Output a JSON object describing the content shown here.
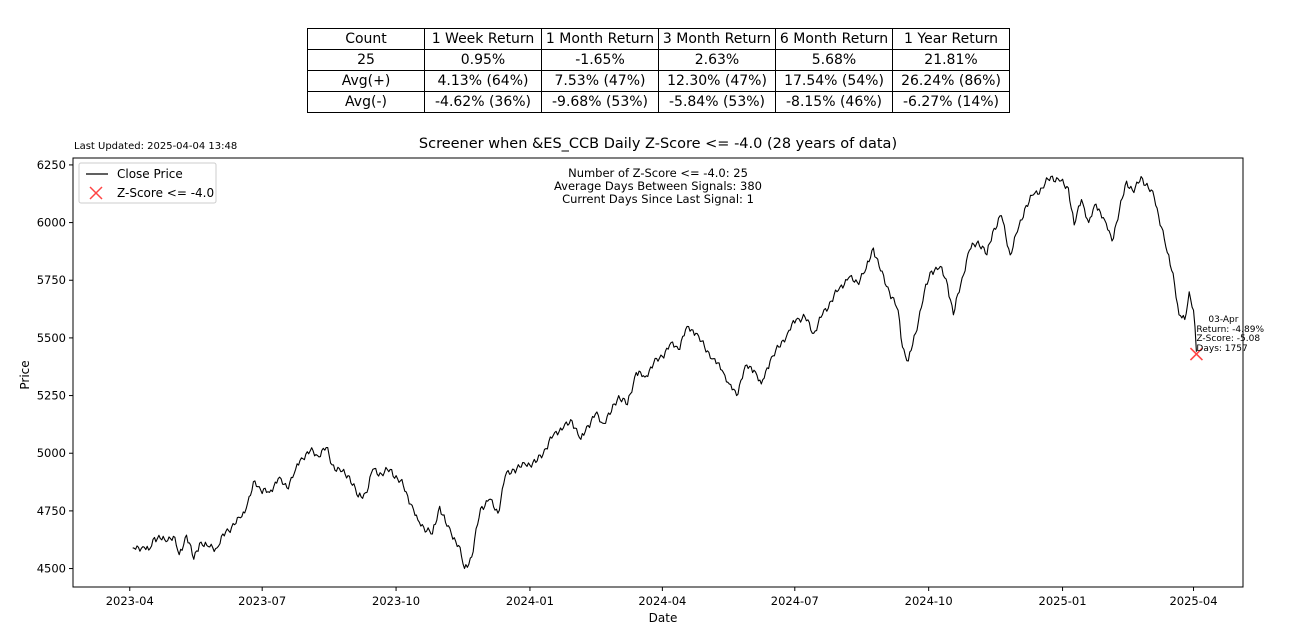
{
  "stats_table": {
    "header": [
      "Count",
      "1 Week Return",
      "1 Month Return",
      "3 Month Return",
      "6 Month Return",
      "1 Year Return"
    ],
    "rows": [
      [
        "25",
        "0.95%",
        "-1.65%",
        "2.63%",
        "5.68%",
        "21.81%"
      ],
      [
        "Avg(+)",
        "4.13% (64%)",
        "7.53% (47%)",
        "12.30% (47%)",
        "17.54% (54%)",
        "26.24% (86%)"
      ],
      [
        "Avg(-)",
        "-4.62% (36%)",
        "-9.68% (53%)",
        "-5.84% (53%)",
        "-8.15% (46%)",
        "-6.27% (14%)"
      ]
    ]
  },
  "last_updated": "Last Updated: 2025-04-04 13:48",
  "chart_data": {
    "type": "line",
    "title": "Screener when &ES_CCB Daily Z-Score <= -4.0 (28 years of data)",
    "xlabel": "Date",
    "ylabel": "Price",
    "xlim": [
      "2023-02-21",
      "2025-05-05"
    ],
    "ylim": [
      4420,
      6280
    ],
    "x_ticks": [
      {
        "date": "2023-04-01",
        "label": "2023-04"
      },
      {
        "date": "2023-07-01",
        "label": "2023-07"
      },
      {
        "date": "2023-10-01",
        "label": "2023-10"
      },
      {
        "date": "2024-01-01",
        "label": "2024-01"
      },
      {
        "date": "2024-04-01",
        "label": "2024-04"
      },
      {
        "date": "2024-07-01",
        "label": "2024-07"
      },
      {
        "date": "2024-10-01",
        "label": "2024-10"
      },
      {
        "date": "2025-01-01",
        "label": "2025-01"
      },
      {
        "date": "2025-04-01",
        "label": "2025-04"
      }
    ],
    "y_ticks": [
      4500,
      4750,
      5000,
      5250,
      5500,
      5750,
      6000,
      6250
    ],
    "legend_position": "top-left",
    "info_lines": [
      "Number of Z-Score <= -4.0: 25",
      "Average Days Between Signals: 380",
      "Current Days Since Last Signal: 1"
    ],
    "series": [
      {
        "name": "Close Price",
        "color": "#000000",
        "points": [
          [
            "2023-04-03",
            4590
          ],
          [
            "2023-04-10",
            4595
          ],
          [
            "2023-04-14",
            4580
          ],
          [
            "2023-04-18",
            4635
          ],
          [
            "2023-04-25",
            4625
          ],
          [
            "2023-05-01",
            4640
          ],
          [
            "2023-05-05",
            4560
          ],
          [
            "2023-05-10",
            4645
          ],
          [
            "2023-05-15",
            4540
          ],
          [
            "2023-05-19",
            4610
          ],
          [
            "2023-05-24",
            4600
          ],
          [
            "2023-05-31",
            4590
          ],
          [
            "2023-06-06",
            4660
          ],
          [
            "2023-06-12",
            4690
          ],
          [
            "2023-06-16",
            4720
          ],
          [
            "2023-06-20",
            4760
          ],
          [
            "2023-06-26",
            4880
          ],
          [
            "2023-06-30",
            4840
          ],
          [
            "2023-07-06",
            4830
          ],
          [
            "2023-07-12",
            4890
          ],
          [
            "2023-07-18",
            4850
          ],
          [
            "2023-07-24",
            4930
          ],
          [
            "2023-07-28",
            4980
          ],
          [
            "2023-08-03",
            5010
          ],
          [
            "2023-08-08",
            4990
          ],
          [
            "2023-08-14",
            5025
          ],
          [
            "2023-08-18",
            4950
          ],
          [
            "2023-08-24",
            4920
          ],
          [
            "2023-08-30",
            4900
          ],
          [
            "2023-09-05",
            4810
          ],
          [
            "2023-09-11",
            4830
          ],
          [
            "2023-09-15",
            4930
          ],
          [
            "2023-09-21",
            4910
          ],
          [
            "2023-09-27",
            4930
          ],
          [
            "2023-10-02",
            4890
          ],
          [
            "2023-10-06",
            4860
          ],
          [
            "2023-10-11",
            4780
          ],
          [
            "2023-10-16",
            4710
          ],
          [
            "2023-10-20",
            4680
          ],
          [
            "2023-10-26",
            4650
          ],
          [
            "2023-10-31",
            4770
          ],
          [
            "2023-11-04",
            4700
          ],
          [
            "2023-11-08",
            4650
          ],
          [
            "2023-11-13",
            4600
          ],
          [
            "2023-11-17",
            4500
          ],
          [
            "2023-11-22",
            4550
          ],
          [
            "2023-11-28",
            4760
          ],
          [
            "2023-12-04",
            4800
          ],
          [
            "2023-12-10",
            4740
          ],
          [
            "2023-12-15",
            4900
          ],
          [
            "2023-12-21",
            4930
          ],
          [
            "2023-12-29",
            4950
          ],
          [
            "2024-01-05",
            4960
          ],
          [
            "2024-01-12",
            5020
          ],
          [
            "2024-01-18",
            5090
          ],
          [
            "2024-01-24",
            5110
          ],
          [
            "2024-01-30",
            5140
          ],
          [
            "2024-02-05",
            5060
          ],
          [
            "2024-02-10",
            5120
          ],
          [
            "2024-02-15",
            5170
          ],
          [
            "2024-02-20",
            5130
          ],
          [
            "2024-02-26",
            5180
          ],
          [
            "2024-03-02",
            5250
          ],
          [
            "2024-03-08",
            5210
          ],
          [
            "2024-03-14",
            5350
          ],
          [
            "2024-03-20",
            5330
          ],
          [
            "2024-03-26",
            5390
          ],
          [
            "2024-04-01",
            5420
          ],
          [
            "2024-04-07",
            5480
          ],
          [
            "2024-04-12",
            5450
          ],
          [
            "2024-04-18",
            5550
          ],
          [
            "2024-04-24",
            5520
          ],
          [
            "2024-04-30",
            5460
          ],
          [
            "2024-05-06",
            5410
          ],
          [
            "2024-05-12",
            5360
          ],
          [
            "2024-05-17",
            5300
          ],
          [
            "2024-05-22",
            5250
          ],
          [
            "2024-05-28",
            5380
          ],
          [
            "2024-06-03",
            5360
          ],
          [
            "2024-06-08",
            5300
          ],
          [
            "2024-06-14",
            5400
          ],
          [
            "2024-06-20",
            5460
          ],
          [
            "2024-06-26",
            5520
          ],
          [
            "2024-07-02",
            5580
          ],
          [
            "2024-07-08",
            5590
          ],
          [
            "2024-07-14",
            5520
          ],
          [
            "2024-07-20",
            5600
          ],
          [
            "2024-07-26",
            5660
          ],
          [
            "2024-08-01",
            5720
          ],
          [
            "2024-08-07",
            5760
          ],
          [
            "2024-08-13",
            5740
          ],
          [
            "2024-08-19",
            5800
          ],
          [
            "2024-08-24",
            5890
          ],
          [
            "2024-08-29",
            5790
          ],
          [
            "2024-09-04",
            5700
          ],
          [
            "2024-09-10",
            5620
          ],
          [
            "2024-09-13",
            5460
          ],
          [
            "2024-09-17",
            5400
          ],
          [
            "2024-09-22",
            5520
          ],
          [
            "2024-09-28",
            5700
          ],
          [
            "2024-10-03",
            5790
          ],
          [
            "2024-10-09",
            5810
          ],
          [
            "2024-10-14",
            5730
          ],
          [
            "2024-10-18",
            5600
          ],
          [
            "2024-10-24",
            5760
          ],
          [
            "2024-10-29",
            5880
          ],
          [
            "2024-11-04",
            5920
          ],
          [
            "2024-11-10",
            5860
          ],
          [
            "2024-11-14",
            5960
          ],
          [
            "2024-11-20",
            6030
          ],
          [
            "2024-11-26",
            5860
          ],
          [
            "2024-12-01",
            5960
          ],
          [
            "2024-12-06",
            6060
          ],
          [
            "2024-12-12",
            6120
          ],
          [
            "2024-12-18",
            6150
          ],
          [
            "2024-12-24",
            6200
          ],
          [
            "2024-12-30",
            6180
          ],
          [
            "2025-01-05",
            6150
          ],
          [
            "2025-01-09",
            5990
          ],
          [
            "2025-01-14",
            6100
          ],
          [
            "2025-01-19",
            6000
          ],
          [
            "2025-01-24",
            6080
          ],
          [
            "2025-01-30",
            6010
          ],
          [
            "2025-02-04",
            5920
          ],
          [
            "2025-02-09",
            6050
          ],
          [
            "2025-02-14",
            6180
          ],
          [
            "2025-02-19",
            6130
          ],
          [
            "2025-02-24",
            6200
          ],
          [
            "2025-03-01",
            6150
          ],
          [
            "2025-03-05",
            6110
          ],
          [
            "2025-03-10",
            5980
          ],
          [
            "2025-03-14",
            5870
          ],
          [
            "2025-03-18",
            5780
          ],
          [
            "2025-03-22",
            5600
          ],
          [
            "2025-03-26",
            5580
          ],
          [
            "2025-03-29",
            5700
          ],
          [
            "2025-04-01",
            5620
          ],
          [
            "2025-04-03",
            5440
          ]
        ]
      }
    ],
    "signals": [
      {
        "name": "Z-Score <= -4.0",
        "color": "#ff4444",
        "marker": "x",
        "date": "2025-04-03",
        "price": 5430,
        "annotation": [
          "03-Apr",
          "Return: -4.89%",
          "Z-Score: -5.08",
          "Days: 1757"
        ]
      }
    ]
  }
}
